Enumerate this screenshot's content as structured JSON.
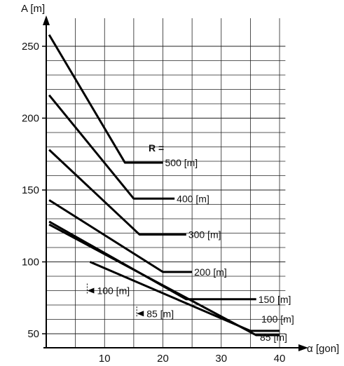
{
  "chart_data": {
    "type": "line",
    "xlabel": "α [gon]",
    "ylabel": "A [m]",
    "xlim": [
      0,
      43
    ],
    "ylim": [
      45,
      265
    ],
    "x_ticks": [
      10,
      20,
      30,
      40
    ],
    "y_ticks": [
      50,
      100,
      150,
      200,
      250
    ],
    "grid": true,
    "legend_title": "R =",
    "series": [
      {
        "name": "500 [m]",
        "points": [
          [
            0.5,
            258
          ],
          [
            13.5,
            169
          ],
          [
            20,
            169
          ]
        ]
      },
      {
        "name": "400 [m]",
        "points": [
          [
            0.5,
            216
          ],
          [
            15,
            144
          ],
          [
            22,
            144
          ]
        ]
      },
      {
        "name": "300 [m]",
        "points": [
          [
            0.5,
            178
          ],
          [
            16,
            119
          ],
          [
            24,
            119
          ]
        ]
      },
      {
        "name": "200 [m]",
        "points": [
          [
            0.5,
            143
          ],
          [
            20,
            93
          ],
          [
            25,
            93
          ]
        ]
      },
      {
        "name": "150 [m]",
        "points": [
          [
            0.5,
            128
          ],
          [
            24,
            74
          ],
          [
            36,
            74
          ]
        ]
      },
      {
        "name": "100 [m]",
        "points": [
          [
            7.5,
            100
          ],
          [
            35,
            52
          ],
          [
            40,
            52
          ]
        ]
      },
      {
        "name": "85 [m]",
        "points": [
          [
            0.5,
            126
          ],
          [
            36,
            49
          ],
          [
            40,
            49
          ]
        ]
      }
    ],
    "annotations": [
      {
        "text": "100 [m]",
        "x": 7.5,
        "y": 80
      },
      {
        "text": "85 [m]",
        "x": 16,
        "y": 64
      }
    ]
  }
}
